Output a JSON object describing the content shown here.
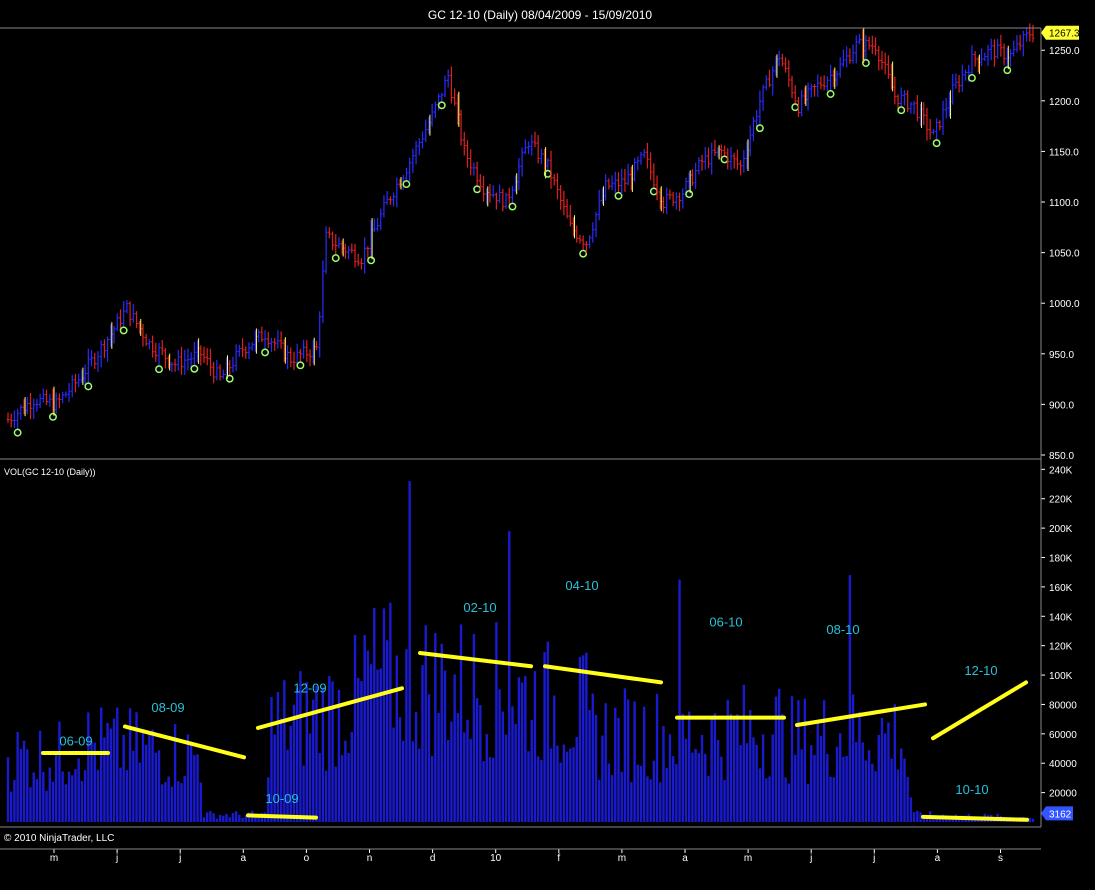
{
  "window": {
    "title": "GC 12-10 (Daily)  08/04/2009 - 15/09/2010"
  },
  "price_panel": {
    "current_price_label": "1267.3",
    "y_ticks": [
      "1250.0",
      "1200.0",
      "1150.0",
      "1100.0",
      "1050.0",
      "1000.0",
      "950.0",
      "900.0",
      "850.0"
    ]
  },
  "volume_panel": {
    "label": "VOL(GC 12-10 (Daily))",
    "current_volume_label": "3162",
    "y_ticks": [
      "240K",
      "220K",
      "200K",
      "180K",
      "160K",
      "140K",
      "120K",
      "100K",
      "80000",
      "60000",
      "40000",
      "20000"
    ]
  },
  "x_axis": {
    "ticks": [
      "m",
      "j",
      "j",
      "a",
      "o",
      "n",
      "d",
      "10",
      "f",
      "m",
      "a",
      "m",
      "j",
      "j",
      "a",
      "s"
    ]
  },
  "footer": {
    "copyright": "© 2010 NinjaTrader, LLC"
  },
  "colors": {
    "background": "#000000",
    "up_bar": "#2a2aff",
    "down_bar": "#e02020",
    "volume_bar": "#1a1ad0",
    "trendline": "#ffff1a",
    "annotation": "#27c1d8",
    "marker": "#9cff6a",
    "badge_price": "#ffff33",
    "badge_volume": "#3355ff"
  },
  "chart_data": [
    {
      "type": "candlestick",
      "title": "GC 12-10 (Daily)  08/04/2009 - 15/09/2010",
      "ylim": [
        850,
        1270
      ],
      "y_ticks": [
        850,
        900,
        950,
        1000,
        1050,
        1100,
        1150,
        1200,
        1250
      ],
      "last_price": 1267.3,
      "x_months": [
        "m",
        "j",
        "j",
        "a",
        "o",
        "n",
        "d",
        "10",
        "f",
        "m",
        "a",
        "m",
        "j",
        "j",
        "a",
        "s"
      ],
      "close_trace": [
        {
          "i": 0,
          "v": 885
        },
        {
          "i": 8,
          "v": 905
        },
        {
          "i": 15,
          "v": 900
        },
        {
          "i": 22,
          "v": 925
        },
        {
          "i": 30,
          "v": 960
        },
        {
          "i": 37,
          "v": 995
        },
        {
          "i": 44,
          "v": 960
        },
        {
          "i": 52,
          "v": 940
        },
        {
          "i": 60,
          "v": 950
        },
        {
          "i": 66,
          "v": 925
        },
        {
          "i": 73,
          "v": 955
        },
        {
          "i": 80,
          "v": 970
        },
        {
          "i": 88,
          "v": 945
        },
        {
          "i": 96,
          "v": 955
        },
        {
          "i": 99,
          "v": 1065
        },
        {
          "i": 104,
          "v": 1055
        },
        {
          "i": 110,
          "v": 1045
        },
        {
          "i": 118,
          "v": 1100
        },
        {
          "i": 125,
          "v": 1140
        },
        {
          "i": 132,
          "v": 1185
        },
        {
          "i": 137,
          "v": 1225
        },
        {
          "i": 142,
          "v": 1150
        },
        {
          "i": 148,
          "v": 1115
        },
        {
          "i": 155,
          "v": 1100
        },
        {
          "i": 162,
          "v": 1160
        },
        {
          "i": 168,
          "v": 1135
        },
        {
          "i": 175,
          "v": 1075
        },
        {
          "i": 180,
          "v": 1060
        },
        {
          "i": 186,
          "v": 1115
        },
        {
          "i": 192,
          "v": 1120
        },
        {
          "i": 198,
          "v": 1145
        },
        {
          "i": 204,
          "v": 1100
        },
        {
          "i": 210,
          "v": 1110
        },
        {
          "i": 216,
          "v": 1140
        },
        {
          "i": 222,
          "v": 1150
        },
        {
          "i": 228,
          "v": 1135
        },
        {
          "i": 234,
          "v": 1200
        },
        {
          "i": 240,
          "v": 1245
        },
        {
          "i": 246,
          "v": 1195
        },
        {
          "i": 252,
          "v": 1215
        },
        {
          "i": 258,
          "v": 1230
        },
        {
          "i": 264,
          "v": 1255
        },
        {
          "i": 270,
          "v": 1255
        },
        {
          "i": 276,
          "v": 1205
        },
        {
          "i": 282,
          "v": 1195
        },
        {
          "i": 288,
          "v": 1165
        },
        {
          "i": 294,
          "v": 1210
        },
        {
          "i": 300,
          "v": 1240
        },
        {
          "i": 306,
          "v": 1250
        },
        {
          "i": 312,
          "v": 1245
        },
        {
          "i": 318,
          "v": 1267
        }
      ]
    },
    {
      "type": "bar",
      "title": "VOL(GC 12-10 (Daily))",
      "ylim": [
        0,
        245000
      ],
      "y_ticks": [
        20000,
        40000,
        60000,
        80000,
        100000,
        120000,
        140000,
        160000,
        180000,
        200000,
        220000,
        240000
      ],
      "last_volume": 3162,
      "volume_trace": [
        {
          "i": 0,
          "v": 45000
        },
        {
          "i": 18,
          "v": 45000
        },
        {
          "i": 19,
          "v": 55000
        },
        {
          "i": 40,
          "v": 50000
        },
        {
          "i": 60,
          "v": 45000
        },
        {
          "i": 61,
          "v": 5000
        },
        {
          "i": 80,
          "v": 5000
        },
        {
          "i": 81,
          "v": 65000
        },
        {
          "i": 100,
          "v": 75000
        },
        {
          "i": 110,
          "v": 85000
        },
        {
          "i": 111,
          "v": 100000
        },
        {
          "i": 130,
          "v": 95000
        },
        {
          "i": 150,
          "v": 90000
        },
        {
          "i": 160,
          "v": 85000
        },
        {
          "i": 180,
          "v": 75000
        },
        {
          "i": 181,
          "v": 60000
        },
        {
          "i": 220,
          "v": 60000
        },
        {
          "i": 221,
          "v": 60000
        },
        {
          "i": 240,
          "v": 65000
        },
        {
          "i": 241,
          "v": 55000
        },
        {
          "i": 260,
          "v": 60000
        },
        {
          "i": 278,
          "v": 60000
        },
        {
          "i": 282,
          "v": 5000
        },
        {
          "i": 318,
          "v": 3162
        }
      ],
      "spikes": [
        {
          "i": 125,
          "v": 232000
        },
        {
          "i": 156,
          "v": 198000
        },
        {
          "i": 209,
          "v": 165000
        },
        {
          "i": 262,
          "v": 168000
        }
      ],
      "annotations": [
        {
          "label": "06-09",
          "v": 52000
        },
        {
          "label": "08-09",
          "v": 75000
        },
        {
          "label": "10-09",
          "v": 13000
        },
        {
          "label": "12-09",
          "v": 88000
        },
        {
          "label": "02-10",
          "v": 143000
        },
        {
          "label": "04-10",
          "v": 158000
        },
        {
          "label": "06-10",
          "v": 133000
        },
        {
          "label": "08-10",
          "v": 128000
        },
        {
          "label": "10-10",
          "v": 19000
        },
        {
          "label": "12-10",
          "v": 100000
        }
      ],
      "trendlines": [
        {
          "v1": 47000,
          "v2": 47000
        },
        {
          "v1": 65000,
          "v2": 44000
        },
        {
          "v1": 64000,
          "v2": 91000
        },
        {
          "v1": 4500,
          "v2": 3000
        },
        {
          "v1": 115000,
          "v2": 106000
        },
        {
          "v1": 106000,
          "v2": 95000
        },
        {
          "v1": 71000,
          "v2": 71000
        },
        {
          "v1": 66000,
          "v2": 80000
        },
        {
          "v1": 57000,
          "v2": 95000
        },
        {
          "v1": 3500,
          "v2": 1500
        }
      ]
    }
  ]
}
